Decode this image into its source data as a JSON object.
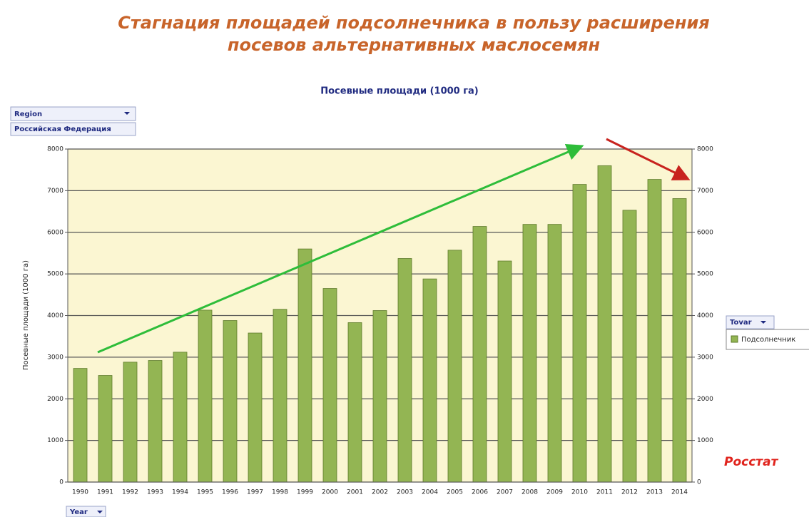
{
  "slide": {
    "title": [
      "Стагнация площадей подсолнечника в пользу расширения",
      "посевов альтернативных маслосемян"
    ],
    "source": "Росстат"
  },
  "filters": {
    "region_field": "Region",
    "region_value": "Российская Федерация",
    "series_field": "Tovar",
    "category_field": "Year"
  },
  "chart_data": {
    "type": "bar",
    "title": "Посевные площади (1000 га)",
    "y_label": "Посевные площади (1000 га)",
    "categories": [
      "1990",
      "1991",
      "1992",
      "1993",
      "1994",
      "1995",
      "1996",
      "1997",
      "1998",
      "1999",
      "2000",
      "2001",
      "2002",
      "2003",
      "2004",
      "2005",
      "2006",
      "2007",
      "2008",
      "2009",
      "2010",
      "2011",
      "2012",
      "2013",
      "2014"
    ],
    "series": [
      {
        "name": "Подсолнечник",
        "color": "#93b553",
        "values": [
          2730,
          2560,
          2880,
          2920,
          3120,
          4130,
          3880,
          3580,
          4150,
          5600,
          4650,
          3830,
          4120,
          5370,
          4880,
          5570,
          6140,
          5310,
          6190,
          6190,
          7150,
          7600,
          6530,
          7270,
          6810
        ]
      }
    ],
    "ylim": [
      0,
      8000
    ],
    "yticks": [
      0,
      1000,
      2000,
      3000,
      4000,
      5000,
      6000,
      7000,
      8000
    ],
    "y2lim": [
      0,
      8000
    ],
    "y2ticks": [
      0,
      1000,
      2000,
      3000,
      4000,
      5000,
      6000,
      7000,
      8000
    ],
    "grid": true
  }
}
